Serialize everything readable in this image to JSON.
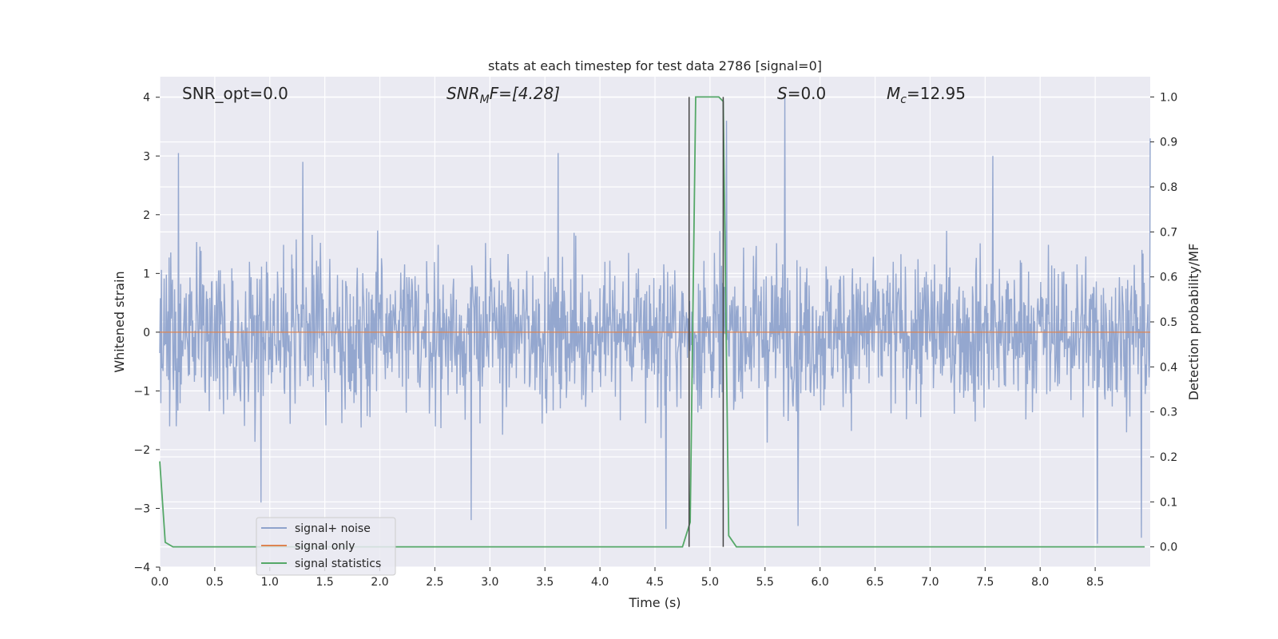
{
  "chart_data": {
    "type": "line",
    "title": "stats at each timestep for test data 2786 [signal=0]",
    "xlabel": "Time (s)",
    "ylabel": "Whitened strain",
    "y2label": "Detection probability/MF",
    "xlim": [
      0.0,
      9.0
    ],
    "ylim": [
      -4.0,
      4.35
    ],
    "y2lim": [
      -0.045,
      1.045
    ],
    "xticks": [
      "0.0",
      "0.5",
      "1.0",
      "1.5",
      "2.0",
      "2.5",
      "3.0",
      "3.5",
      "4.0",
      "4.5",
      "5.0",
      "5.5",
      "6.0",
      "6.5",
      "7.0",
      "7.5",
      "8.0",
      "8.5"
    ],
    "xtick_values": [
      0.0,
      0.5,
      1.0,
      1.5,
      2.0,
      2.5,
      3.0,
      3.5,
      4.0,
      4.5,
      5.0,
      5.5,
      6.0,
      6.5,
      7.0,
      7.5,
      8.0,
      8.5
    ],
    "yticks": [
      "4",
      "3",
      "2",
      "1",
      "0",
      "−1",
      "−2",
      "−3",
      "−4"
    ],
    "ytick_values": [
      4,
      3,
      2,
      1,
      0,
      -1,
      -2,
      -3,
      -4
    ],
    "y2ticks": [
      "1.0",
      "0.9",
      "0.8",
      "0.7",
      "0.6",
      "0.5",
      "0.4",
      "0.3",
      "0.2",
      "0.1",
      "0.0"
    ],
    "y2tick_values": [
      1.0,
      0.9,
      0.8,
      0.7,
      0.6,
      0.5,
      0.4,
      0.3,
      0.2,
      0.1,
      0.0
    ],
    "grid": true,
    "legend_position": "lower-left",
    "annotations": {
      "snr_opt": "SNR_opt=0.0",
      "snr_mf_prefix": "SNR",
      "snr_mf_sub": "M",
      "snr_mf_rest": "F=[4.28]",
      "s_prefix": "S",
      "s_rest": "=0.0",
      "mc_prefix": "M",
      "mc_sub": "c",
      "mc_rest": "=12.95"
    },
    "noise_description": {
      "typical_amplitude_range": [
        -1.5,
        1.5
      ],
      "max": 4.0,
      "min": -3.6,
      "samples": 1800
    },
    "markers_x": [
      4.81,
      5.12
    ],
    "series": [
      {
        "name": "signal+ noise",
        "color": "#8fa3cc",
        "role": "left-axis",
        "peaks": [
          {
            "x": 0.17,
            "y": 3.05
          },
          {
            "x": 1.3,
            "y": 2.9
          },
          {
            "x": 3.62,
            "y": 3.05
          },
          {
            "x": 5.15,
            "y": 3.6
          },
          {
            "x": 5.68,
            "y": 4.0
          },
          {
            "x": 7.57,
            "y": 3.0
          },
          {
            "x": 9.0,
            "y": 3.3
          }
        ],
        "troughs": [
          {
            "x": 0.92,
            "y": -2.9
          },
          {
            "x": 2.83,
            "y": -3.2
          },
          {
            "x": 4.6,
            "y": -3.35
          },
          {
            "x": 5.8,
            "y": -3.3
          },
          {
            "x": 8.52,
            "y": -3.6
          },
          {
            "x": 8.92,
            "y": -3.5
          }
        ]
      },
      {
        "name": "signal only",
        "color": "#dd8452",
        "role": "left-axis",
        "x": [
          0.0,
          9.0
        ],
        "values": [
          0.0,
          0.0
        ]
      },
      {
        "name": "signal statistics",
        "color": "#55a868",
        "role": "right-axis",
        "x": [
          0.0,
          0.05,
          0.12,
          0.5,
          1.0,
          2.0,
          3.0,
          4.0,
          4.75,
          4.82,
          4.87,
          5.08,
          5.12,
          5.17,
          5.24,
          6.0,
          7.0,
          8.0,
          8.95
        ],
        "values": [
          0.19,
          0.01,
          0.0,
          0.0,
          0.0,
          0.0,
          0.0,
          0.0,
          0.0,
          0.055,
          1.0,
          1.0,
          0.99,
          0.025,
          0.0,
          0.0,
          0.0,
          0.0,
          0.0
        ]
      }
    ]
  }
}
